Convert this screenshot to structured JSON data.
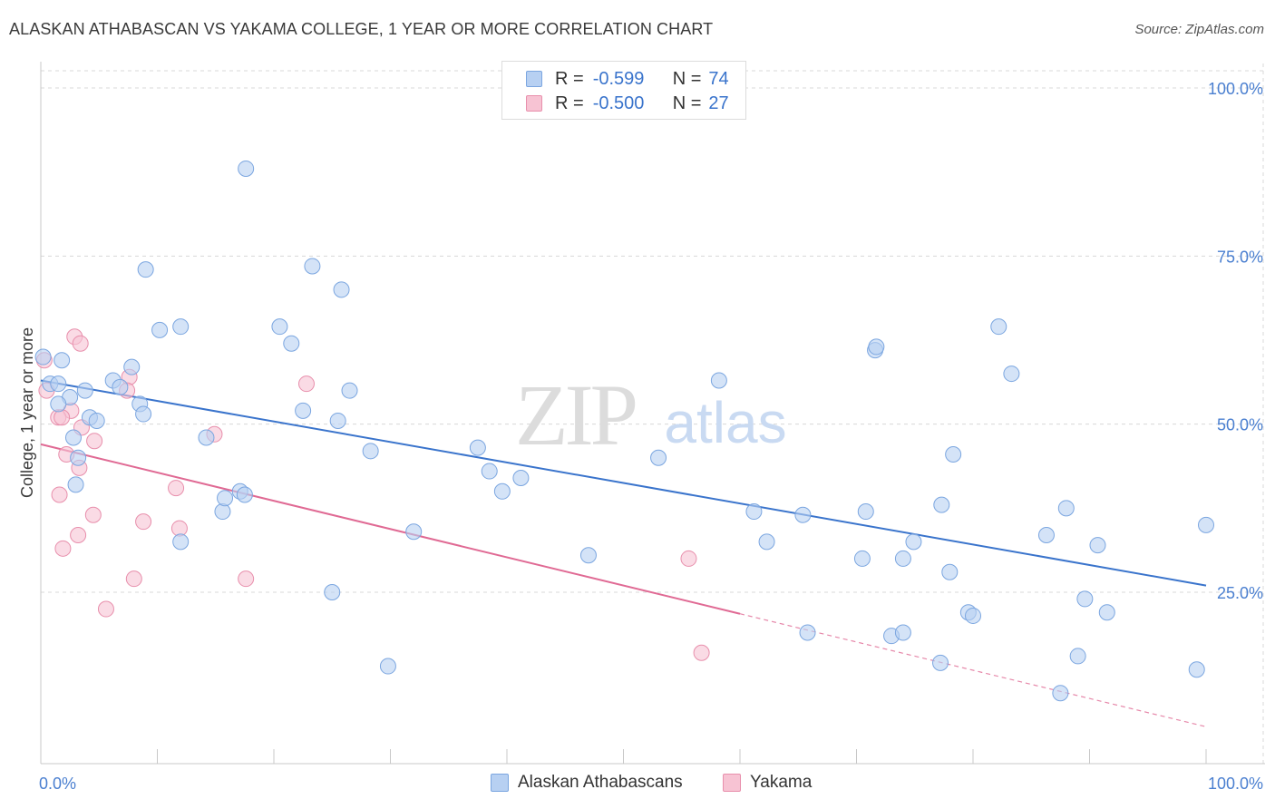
{
  "title": "ALASKAN ATHABASCAN VS YAKAMA COLLEGE, 1 YEAR OR MORE CORRELATION CHART",
  "source": "Source: ZipAtlas.com",
  "colors": {
    "blue": "#3a74cc",
    "blue_fill": "#b7d0f2",
    "pink": "#e06a94",
    "pink_fill": "#f7c3d3",
    "tick": "#4a7fd0",
    "grid": "#d8d8d8"
  },
  "legend": {
    "r_label": "R =",
    "n_label": "N =",
    "series": [
      {
        "name": "Alaskan Athabascans",
        "r": "-0.599",
        "n": "74"
      },
      {
        "name": "Yakama",
        "r": "-0.500",
        "n": "27"
      }
    ]
  },
  "watermark": {
    "zip": "ZIP",
    "atlas": "atlas"
  },
  "chart_data": {
    "type": "scatter",
    "title": "ALASKAN ATHABASCAN VS YAKAMA COLLEGE, 1 YEAR OR MORE CORRELATION CHART",
    "xlabel": "",
    "ylabel": "College, 1 year or more",
    "xlim": [
      0,
      100
    ],
    "ylim": [
      0,
      105
    ],
    "x_tick_labels": [
      "0.0%",
      "100.0%"
    ],
    "y_ticks": [
      25,
      50,
      75,
      100
    ],
    "y_tick_labels": [
      "25.0%",
      "50.0%",
      "75.0%",
      "100.0%"
    ],
    "grid": true,
    "series": [
      {
        "name": "Alaskan Athabascans",
        "trend": {
          "x": [
            0,
            100
          ],
          "y": [
            56.5,
            26.0
          ],
          "dashed_from": null
        },
        "points": [
          [
            0.2,
            60.0
          ],
          [
            1.8,
            59.5
          ],
          [
            0.8,
            56.0
          ],
          [
            2.5,
            54.0
          ],
          [
            1.5,
            53.0
          ],
          [
            4.2,
            51.0
          ],
          [
            2.8,
            48.0
          ],
          [
            4.8,
            50.5
          ],
          [
            3.8,
            55.0
          ],
          [
            6.2,
            56.5
          ],
          [
            1.5,
            56.0
          ],
          [
            3.2,
            45.0
          ],
          [
            3.0,
            41.0
          ],
          [
            6.8,
            55.5
          ],
          [
            7.8,
            58.5
          ],
          [
            8.5,
            53.0
          ],
          [
            9.0,
            73.0
          ],
          [
            8.8,
            51.5
          ],
          [
            10.2,
            64.0
          ],
          [
            12.0,
            64.5
          ],
          [
            14.2,
            48.0
          ],
          [
            15.6,
            37.0
          ],
          [
            15.8,
            39.0
          ],
          [
            17.1,
            40.0
          ],
          [
            17.5,
            39.5
          ],
          [
            12.0,
            32.5
          ],
          [
            17.6,
            88.0
          ],
          [
            20.5,
            64.5
          ],
          [
            21.5,
            62.0
          ],
          [
            23.3,
            73.5
          ],
          [
            22.5,
            52.0
          ],
          [
            25.8,
            70.0
          ],
          [
            26.5,
            55.0
          ],
          [
            25.5,
            50.5
          ],
          [
            28.3,
            46.0
          ],
          [
            25.0,
            25.0
          ],
          [
            29.8,
            14.0
          ],
          [
            32.0,
            34.0
          ],
          [
            37.5,
            46.5
          ],
          [
            38.5,
            43.0
          ],
          [
            39.6,
            40.0
          ],
          [
            41.2,
            42.0
          ],
          [
            47.0,
            30.5
          ],
          [
            53.0,
            45.0
          ],
          [
            58.2,
            56.5
          ],
          [
            61.2,
            37.0
          ],
          [
            62.3,
            32.5
          ],
          [
            65.4,
            36.5
          ],
          [
            65.8,
            19.0
          ],
          [
            70.5,
            30.0
          ],
          [
            70.8,
            37.0
          ],
          [
            71.6,
            61.0
          ],
          [
            71.7,
            61.5
          ],
          [
            73.0,
            18.5
          ],
          [
            74.0,
            19.0
          ],
          [
            74.0,
            30.0
          ],
          [
            74.9,
            32.5
          ],
          [
            77.2,
            14.5
          ],
          [
            77.3,
            38.0
          ],
          [
            78.0,
            28.0
          ],
          [
            78.3,
            45.5
          ],
          [
            79.6,
            22.0
          ],
          [
            80.0,
            21.5
          ],
          [
            82.2,
            64.5
          ],
          [
            83.3,
            57.5
          ],
          [
            86.3,
            33.5
          ],
          [
            87.5,
            10.0
          ],
          [
            88.0,
            37.5
          ],
          [
            89.0,
            15.5
          ],
          [
            89.6,
            24.0
          ],
          [
            90.7,
            32.0
          ],
          [
            91.5,
            22.0
          ],
          [
            99.2,
            13.5
          ],
          [
            100.0,
            35.0
          ]
        ]
      },
      {
        "name": "Yakama",
        "trend": {
          "x": [
            0,
            100
          ],
          "y": [
            47.0,
            5.0
          ],
          "dashed_from": 60.0
        },
        "points": [
          [
            0.3,
            59.5
          ],
          [
            0.5,
            55.0
          ],
          [
            2.9,
            63.0
          ],
          [
            3.4,
            62.0
          ],
          [
            7.6,
            57.0
          ],
          [
            7.4,
            55.0
          ],
          [
            2.6,
            52.0
          ],
          [
            1.5,
            51.0
          ],
          [
            1.8,
            51.0
          ],
          [
            3.5,
            49.5
          ],
          [
            4.6,
            47.5
          ],
          [
            2.2,
            45.5
          ],
          [
            3.3,
            43.5
          ],
          [
            1.6,
            39.5
          ],
          [
            4.5,
            36.5
          ],
          [
            8.8,
            35.5
          ],
          [
            11.9,
            34.5
          ],
          [
            3.2,
            33.5
          ],
          [
            1.9,
            31.5
          ],
          [
            11.6,
            40.5
          ],
          [
            14.9,
            48.5
          ],
          [
            22.8,
            56.0
          ],
          [
            8.0,
            27.0
          ],
          [
            17.6,
            27.0
          ],
          [
            5.6,
            22.5
          ],
          [
            55.6,
            30.0
          ],
          [
            56.7,
            16.0
          ]
        ]
      }
    ]
  }
}
